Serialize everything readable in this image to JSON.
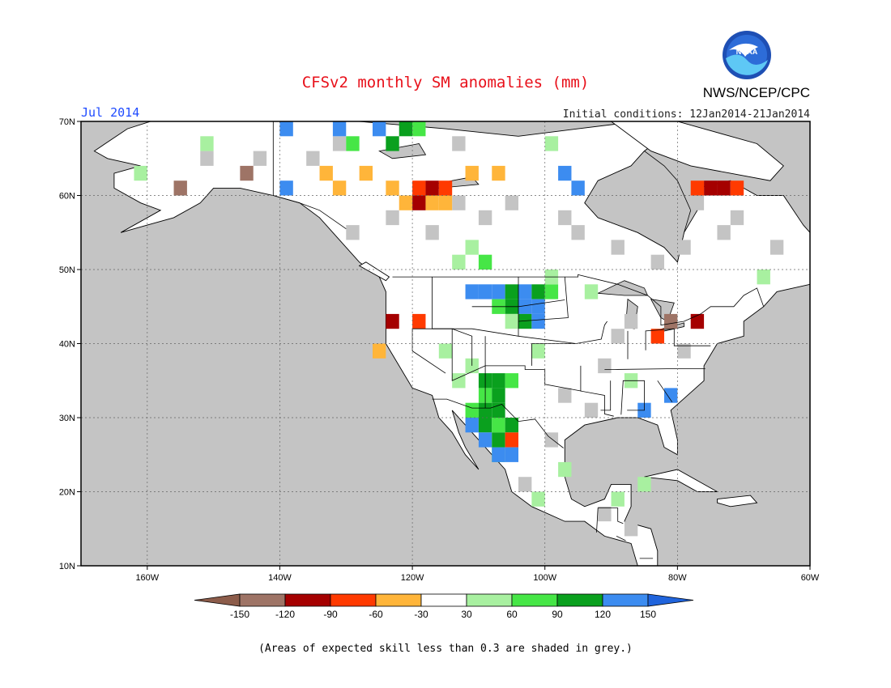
{
  "title": "CFSv2 monthly SM anomalies (mm)",
  "valid_month": "Jul 2014",
  "initial_conditions": "Initial conditions: 12Jan2014-21Jan2014",
  "agency": "NWS/NCEP/CPC",
  "logo_text": "NOAA",
  "skill_note": "(Areas of expected skill less than 0.3 are shaded in grey.)",
  "map": {
    "lon_range": [
      -170,
      -60
    ],
    "lat_range": [
      10,
      70
    ],
    "lon_ticks": [
      {
        "value": -160,
        "label": "160W"
      },
      {
        "value": -140,
        "label": "140W"
      },
      {
        "value": -120,
        "label": "120W"
      },
      {
        "value": -100,
        "label": "100W"
      },
      {
        "value": -80,
        "label": "80W"
      },
      {
        "value": -60,
        "label": "60W"
      }
    ],
    "lat_ticks": [
      {
        "value": 10,
        "label": "10N"
      },
      {
        "value": 20,
        "label": "20N"
      },
      {
        "value": 30,
        "label": "30N"
      },
      {
        "value": 40,
        "label": "40N"
      },
      {
        "value": 50,
        "label": "50N"
      },
      {
        "value": 60,
        "label": "60N"
      },
      {
        "value": 70,
        "label": "70N"
      }
    ],
    "colors": {
      "ocean": "#c4c4c4",
      "land": "#ffffff",
      "grey_low_skill": "#c4c4c4"
    }
  },
  "colorbar": {
    "bins": [
      {
        "color": "#8c5c4a",
        "under": true
      },
      {
        "color": "#9e7466"
      },
      {
        "color": "#a50000"
      },
      {
        "color": "#ff3a00"
      },
      {
        "color": "#ffb53a"
      },
      {
        "color": "#ffffff"
      },
      {
        "color": "#a8f0a0"
      },
      {
        "color": "#46e646"
      },
      {
        "color": "#0aa01e"
      },
      {
        "color": "#3c8cf0"
      },
      {
        "color": "#2064dc",
        "over": true
      }
    ],
    "labels": [
      "-150",
      "-120",
      "-90",
      "-60",
      "-30",
      "30",
      "60",
      "90",
      "120",
      "150"
    ]
  },
  "anomaly_cells": [
    {
      "lon": -111,
      "lat": 47,
      "cat": "blue"
    },
    {
      "lon": -109,
      "lat": 47,
      "cat": "blue"
    },
    {
      "lon": -107,
      "lat": 47,
      "cat": "blue"
    },
    {
      "lon": -105,
      "lat": 47,
      "cat": "dkgreen"
    },
    {
      "lon": -103,
      "lat": 47,
      "cat": "blue"
    },
    {
      "lon": -101,
      "lat": 47,
      "cat": "dkgreen"
    },
    {
      "lon": -99,
      "lat": 47,
      "cat": "green"
    },
    {
      "lon": -105,
      "lat": 45,
      "cat": "dkgreen"
    },
    {
      "lon": -103,
      "lat": 45,
      "cat": "blue"
    },
    {
      "lon": -101,
      "lat": 45,
      "cat": "blue"
    },
    {
      "lon": -107,
      "lat": 45,
      "cat": "green"
    },
    {
      "lon": -103,
      "lat": 43,
      "cat": "dkgreen"
    },
    {
      "lon": -101,
      "lat": 43,
      "cat": "blue"
    },
    {
      "lon": -105,
      "lat": 43,
      "cat": "ltgreen"
    },
    {
      "lon": -111,
      "lat": 37,
      "cat": "ltgreen"
    },
    {
      "lon": -109,
      "lat": 35,
      "cat": "dkgreen"
    },
    {
      "lon": -107,
      "lat": 35,
      "cat": "dkgreen"
    },
    {
      "lon": -105,
      "lat": 35,
      "cat": "green"
    },
    {
      "lon": -109,
      "lat": 33,
      "cat": "green"
    },
    {
      "lon": -107,
      "lat": 33,
      "cat": "dkgreen"
    },
    {
      "lon": -111,
      "lat": 31,
      "cat": "green"
    },
    {
      "lon": -109,
      "lat": 31,
      "cat": "dkgreen"
    },
    {
      "lon": -107,
      "lat": 31,
      "cat": "dkgreen"
    },
    {
      "lon": -111,
      "lat": 29,
      "cat": "blue"
    },
    {
      "lon": -109,
      "lat": 29,
      "cat": "dkgreen"
    },
    {
      "lon": -107,
      "lat": 29,
      "cat": "green"
    },
    {
      "lon": -105,
      "lat": 29,
      "cat": "dkgreen"
    },
    {
      "lon": -109,
      "lat": 27,
      "cat": "blue"
    },
    {
      "lon": -107,
      "lat": 27,
      "cat": "dkgreen"
    },
    {
      "lon": -105,
      "lat": 27,
      "cat": "red"
    },
    {
      "lon": -107,
      "lat": 25,
      "cat": "green"
    },
    {
      "lon": -105,
      "lat": 25,
      "cat": "blue"
    },
    {
      "lon": -119,
      "lat": 61,
      "cat": "red"
    },
    {
      "lon": -117,
      "lat": 61,
      "cat": "dkred"
    },
    {
      "lon": -119,
      "lat": 59,
      "cat": "dkred"
    },
    {
      "lon": -117,
      "lat": 59,
      "cat": "orange"
    },
    {
      "lon": -115,
      "lat": 59,
      "cat": "orange"
    },
    {
      "lon": -121,
      "lat": 59,
      "cat": "orange"
    },
    {
      "lon": -115,
      "lat": 61,
      "cat": "red"
    },
    {
      "lon": -123,
      "lat": 61,
      "cat": "orange"
    },
    {
      "lon": -111,
      "lat": 63,
      "cat": "orange"
    },
    {
      "lon": -107,
      "lat": 63,
      "cat": "orange"
    },
    {
      "lon": -133,
      "lat": 63,
      "cat": "orange"
    },
    {
      "lon": -131,
      "lat": 61,
      "cat": "orange"
    },
    {
      "lon": -127,
      "lat": 63,
      "cat": "orange"
    },
    {
      "lon": -75,
      "lat": 61,
      "cat": "dkred"
    },
    {
      "lon": -73,
      "lat": 61,
      "cat": "dkred"
    },
    {
      "lon": -71,
      "lat": 61,
      "cat": "red"
    },
    {
      "lon": -77,
      "lat": 61,
      "cat": "red"
    },
    {
      "lon": -139,
      "lat": 69,
      "cat": "blue"
    },
    {
      "lon": -131,
      "lat": 69,
      "cat": "blue"
    },
    {
      "lon": -125,
      "lat": 69,
      "cat": "blue"
    },
    {
      "lon": -121,
      "lat": 69,
      "cat": "dkgreen"
    },
    {
      "lon": -119,
      "lat": 69,
      "cat": "green"
    },
    {
      "lon": -129,
      "lat": 67,
      "cat": "green"
    },
    {
      "lon": -123,
      "lat": 67,
      "cat": "dkgreen"
    },
    {
      "lon": -145,
      "lat": 63,
      "cat": "brown"
    },
    {
      "lon": -155,
      "lat": 61,
      "cat": "brown"
    },
    {
      "lon": -139,
      "lat": 61,
      "cat": "blue"
    },
    {
      "lon": -85,
      "lat": 31,
      "cat": "blue"
    },
    {
      "lon": -81,
      "lat": 33,
      "cat": "blue"
    },
    {
      "lon": -83,
      "lat": 41,
      "cat": "red"
    },
    {
      "lon": -81,
      "lat": 43,
      "cat": "brown"
    },
    {
      "lon": -77,
      "lat": 43,
      "cat": "dkred"
    },
    {
      "lon": -123,
      "lat": 43,
      "cat": "dkred"
    },
    {
      "lon": -125,
      "lat": 39,
      "cat": "orange"
    },
    {
      "lon": -119,
      "lat": 43,
      "cat": "red"
    },
    {
      "lon": -107,
      "lat": 25,
      "cat": "blue"
    },
    {
      "lon": -101,
      "lat": 39,
      "cat": "ltgreen"
    },
    {
      "lon": -115,
      "lat": 39,
      "cat": "ltgreen"
    },
    {
      "lon": -113,
      "lat": 35,
      "cat": "ltgreen"
    },
    {
      "lon": -113,
      "lat": 51,
      "cat": "ltgreen"
    },
    {
      "lon": -99,
      "lat": 49,
      "cat": "ltgreen"
    },
    {
      "lon": -93,
      "lat": 47,
      "cat": "ltgreen"
    },
    {
      "lon": -87,
      "lat": 35,
      "cat": "ltgreen"
    },
    {
      "lon": -85,
      "lat": 21,
      "cat": "ltgreen"
    },
    {
      "lon": -89,
      "lat": 19,
      "cat": "ltgreen"
    },
    {
      "lon": -101,
      "lat": 19,
      "cat": "ltgreen"
    },
    {
      "lon": -97,
      "lat": 23,
      "cat": "ltgreen"
    },
    {
      "lon": -151,
      "lat": 67,
      "cat": "ltgreen"
    },
    {
      "lon": -161,
      "lat": 63,
      "cat": "ltgreen"
    },
    {
      "lon": -99,
      "lat": 67,
      "cat": "ltgreen"
    },
    {
      "lon": -67,
      "lat": 49,
      "cat": "ltgreen"
    },
    {
      "lon": -97,
      "lat": 63,
      "cat": "blue"
    },
    {
      "lon": -95,
      "lat": 61,
      "cat": "blue"
    },
    {
      "lon": -111,
      "lat": 53,
      "cat": "ltgreen"
    },
    {
      "lon": -109,
      "lat": 51,
      "cat": "green"
    }
  ],
  "grey_cells": [
    {
      "lon": -97,
      "lat": 57
    },
    {
      "lon": -95,
      "lat": 55
    },
    {
      "lon": -89,
      "lat": 53
    },
    {
      "lon": -83,
      "lat": 51
    },
    {
      "lon": -79,
      "lat": 53
    },
    {
      "lon": -73,
      "lat": 55
    },
    {
      "lon": -71,
      "lat": 57
    },
    {
      "lon": -77,
      "lat": 59
    },
    {
      "lon": -65,
      "lat": 53
    },
    {
      "lon": -113,
      "lat": 59
    },
    {
      "lon": -105,
      "lat": 59
    },
    {
      "lon": -109,
      "lat": 57
    },
    {
      "lon": -117,
      "lat": 55
    },
    {
      "lon": -123,
      "lat": 57
    },
    {
      "lon": -129,
      "lat": 55
    },
    {
      "lon": -143,
      "lat": 65
    },
    {
      "lon": -151,
      "lat": 65
    },
    {
      "lon": -135,
      "lat": 65
    },
    {
      "lon": -131,
      "lat": 67
    },
    {
      "lon": -113,
      "lat": 67
    },
    {
      "lon": -89,
      "lat": 41
    },
    {
      "lon": -91,
      "lat": 37
    },
    {
      "lon": -97,
      "lat": 33
    },
    {
      "lon": -93,
      "lat": 31
    },
    {
      "lon": -87,
      "lat": 43
    },
    {
      "lon": -79,
      "lat": 39
    },
    {
      "lon": -99,
      "lat": 27
    },
    {
      "lon": -103,
      "lat": 21
    },
    {
      "lon": -91,
      "lat": 17
    },
    {
      "lon": -87,
      "lat": 15
    }
  ]
}
